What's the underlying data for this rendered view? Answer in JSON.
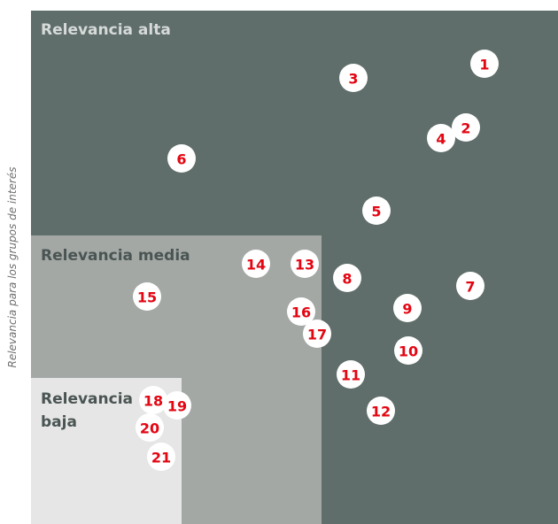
{
  "y_axis_label": "Relevancia para los grupos de interés",
  "zones": {
    "high": "Relevancia alta",
    "medium": "Relevancia media",
    "low": [
      "Relevancia",
      "baja"
    ]
  },
  "items": [
    "1",
    "2",
    "3",
    "4",
    "5",
    "6",
    "7",
    "8",
    "9",
    "10",
    "11",
    "12",
    "13",
    "14",
    "15",
    "16",
    "17",
    "18",
    "19",
    "20",
    "21"
  ]
}
